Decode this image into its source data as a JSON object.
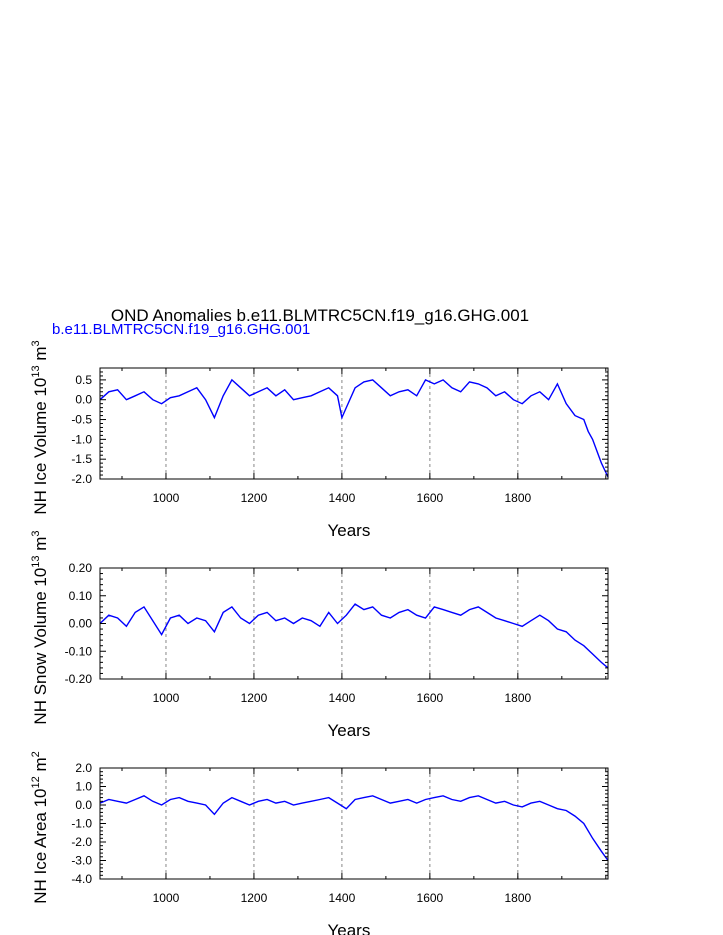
{
  "figure": {
    "title": "OND Anomalies b.e11.BLMTRC5CN.f19_g16.GHG.001",
    "subtitle": "b.e11.BLMTRC5CN.f19_g16.GHG.001",
    "subtitle_color": "#0000ff",
    "line_color": "#0000ff",
    "grid_color": "#888888"
  },
  "chart_data": [
    {
      "type": "line",
      "ylabel_text": "NH Ice Volume 10",
      "ylabel_exp": "13",
      "ylabel_unit": " m",
      "ylabel_unit_exp": "3",
      "xlabel": "Years",
      "xlim": [
        850,
        2005
      ],
      "ylim": [
        -2.0,
        0.8
      ],
      "x_ticks": [
        1000,
        1200,
        1400,
        1600,
        1800
      ],
      "y_ticks": [
        -2.0,
        -1.5,
        -1.0,
        -0.5,
        0.0,
        0.5
      ],
      "y_tick_labels": [
        "-2.0",
        "-1.5",
        "-1.0",
        "-0.5",
        "0.0",
        "0.5"
      ],
      "series": [
        {
          "name": "NH Ice Volume",
          "x": [
            850,
            870,
            890,
            910,
            930,
            950,
            970,
            990,
            1010,
            1030,
            1050,
            1070,
            1090,
            1110,
            1130,
            1150,
            1170,
            1190,
            1210,
            1230,
            1250,
            1270,
            1290,
            1310,
            1330,
            1350,
            1370,
            1390,
            1400,
            1410,
            1430,
            1450,
            1470,
            1490,
            1510,
            1530,
            1550,
            1570,
            1590,
            1610,
            1630,
            1650,
            1670,
            1690,
            1710,
            1730,
            1750,
            1770,
            1790,
            1810,
            1830,
            1850,
            1870,
            1890,
            1910,
            1930,
            1950,
            1960,
            1970,
            1980,
            1990,
            2005
          ],
          "values": [
            0.0,
            0.2,
            0.25,
            0.0,
            0.1,
            0.2,
            0.0,
            -0.1,
            0.05,
            0.1,
            0.2,
            0.3,
            0.0,
            -0.45,
            0.1,
            0.5,
            0.3,
            0.1,
            0.2,
            0.3,
            0.1,
            0.25,
            0.0,
            0.05,
            0.1,
            0.2,
            0.3,
            0.1,
            -0.45,
            -0.2,
            0.3,
            0.45,
            0.5,
            0.3,
            0.1,
            0.2,
            0.25,
            0.1,
            0.5,
            0.4,
            0.5,
            0.3,
            0.2,
            0.45,
            0.4,
            0.3,
            0.1,
            0.2,
            0.0,
            -0.1,
            0.1,
            0.2,
            0.0,
            0.4,
            -0.1,
            -0.4,
            -0.5,
            -0.8,
            -1.0,
            -1.3,
            -1.6,
            -1.95
          ]
        }
      ]
    },
    {
      "type": "line",
      "ylabel_text": "NH Snow Volume 10",
      "ylabel_exp": "13",
      "ylabel_unit": " m",
      "ylabel_unit_exp": "3",
      "xlabel": "Years",
      "xlim": [
        850,
        2005
      ],
      "ylim": [
        -0.2,
        0.2
      ],
      "x_ticks": [
        1000,
        1200,
        1400,
        1600,
        1800
      ],
      "y_ticks": [
        -0.2,
        -0.1,
        0.0,
        0.1,
        0.2
      ],
      "y_tick_labels": [
        "-0.20",
        "-0.10",
        "0.00",
        "0.10",
        "0.20"
      ],
      "series": [
        {
          "name": "NH Snow Volume",
          "x": [
            850,
            870,
            890,
            910,
            930,
            950,
            970,
            990,
            1010,
            1030,
            1050,
            1070,
            1090,
            1110,
            1130,
            1150,
            1170,
            1190,
            1210,
            1230,
            1250,
            1270,
            1290,
            1310,
            1330,
            1350,
            1370,
            1390,
            1410,
            1430,
            1450,
            1470,
            1490,
            1510,
            1530,
            1550,
            1570,
            1590,
            1610,
            1630,
            1650,
            1670,
            1690,
            1710,
            1730,
            1750,
            1770,
            1790,
            1810,
            1830,
            1850,
            1870,
            1890,
            1910,
            1930,
            1950,
            1970,
            1990,
            2005
          ],
          "values": [
            0.0,
            0.03,
            0.02,
            -0.01,
            0.04,
            0.06,
            0.01,
            -0.04,
            0.02,
            0.03,
            0.0,
            0.02,
            0.01,
            -0.03,
            0.04,
            0.06,
            0.02,
            0.0,
            0.03,
            0.04,
            0.01,
            0.02,
            0.0,
            0.02,
            0.01,
            -0.01,
            0.04,
            0.0,
            0.03,
            0.07,
            0.05,
            0.06,
            0.03,
            0.02,
            0.04,
            0.05,
            0.03,
            0.02,
            0.06,
            0.05,
            0.04,
            0.03,
            0.05,
            0.06,
            0.04,
            0.02,
            0.01,
            0.0,
            -0.01,
            0.01,
            0.03,
            0.01,
            -0.02,
            -0.03,
            -0.06,
            -0.08,
            -0.11,
            -0.14,
            -0.16
          ]
        }
      ]
    },
    {
      "type": "line",
      "ylabel_text": "NH Ice Area 10",
      "ylabel_exp": "12",
      "ylabel_unit": " m",
      "ylabel_unit_exp": "2",
      "xlabel": "Years",
      "xlim": [
        850,
        2005
      ],
      "ylim": [
        -4.0,
        2.0
      ],
      "x_ticks": [
        1000,
        1200,
        1400,
        1600,
        1800
      ],
      "y_ticks": [
        -4.0,
        -3.0,
        -2.0,
        -1.0,
        0.0,
        1.0,
        2.0
      ],
      "y_tick_labels": [
        "-4.0",
        "-3.0",
        "-2.0",
        "-1.0",
        "0.0",
        "1.0",
        "2.0"
      ],
      "series": [
        {
          "name": "NH Ice Area",
          "x": [
            850,
            870,
            890,
            910,
            930,
            950,
            970,
            990,
            1010,
            1030,
            1050,
            1070,
            1090,
            1110,
            1130,
            1150,
            1170,
            1190,
            1210,
            1230,
            1250,
            1270,
            1290,
            1310,
            1330,
            1350,
            1370,
            1390,
            1410,
            1430,
            1450,
            1470,
            1490,
            1510,
            1530,
            1550,
            1570,
            1590,
            1610,
            1630,
            1650,
            1670,
            1690,
            1710,
            1730,
            1750,
            1770,
            1790,
            1810,
            1830,
            1850,
            1870,
            1890,
            1910,
            1930,
            1950,
            1970,
            1990,
            2005
          ],
          "values": [
            0.1,
            0.3,
            0.2,
            0.1,
            0.3,
            0.5,
            0.2,
            0.0,
            0.3,
            0.4,
            0.2,
            0.1,
            0.0,
            -0.5,
            0.1,
            0.4,
            0.2,
            0.0,
            0.2,
            0.3,
            0.1,
            0.2,
            0.0,
            0.1,
            0.2,
            0.3,
            0.4,
            0.1,
            -0.2,
            0.3,
            0.4,
            0.5,
            0.3,
            0.1,
            0.2,
            0.3,
            0.1,
            0.3,
            0.4,
            0.5,
            0.3,
            0.2,
            0.4,
            0.5,
            0.3,
            0.1,
            0.2,
            0.0,
            -0.1,
            0.1,
            0.2,
            0.0,
            -0.2,
            -0.3,
            -0.6,
            -1.0,
            -1.8,
            -2.5,
            -3.0
          ]
        }
      ]
    }
  ]
}
